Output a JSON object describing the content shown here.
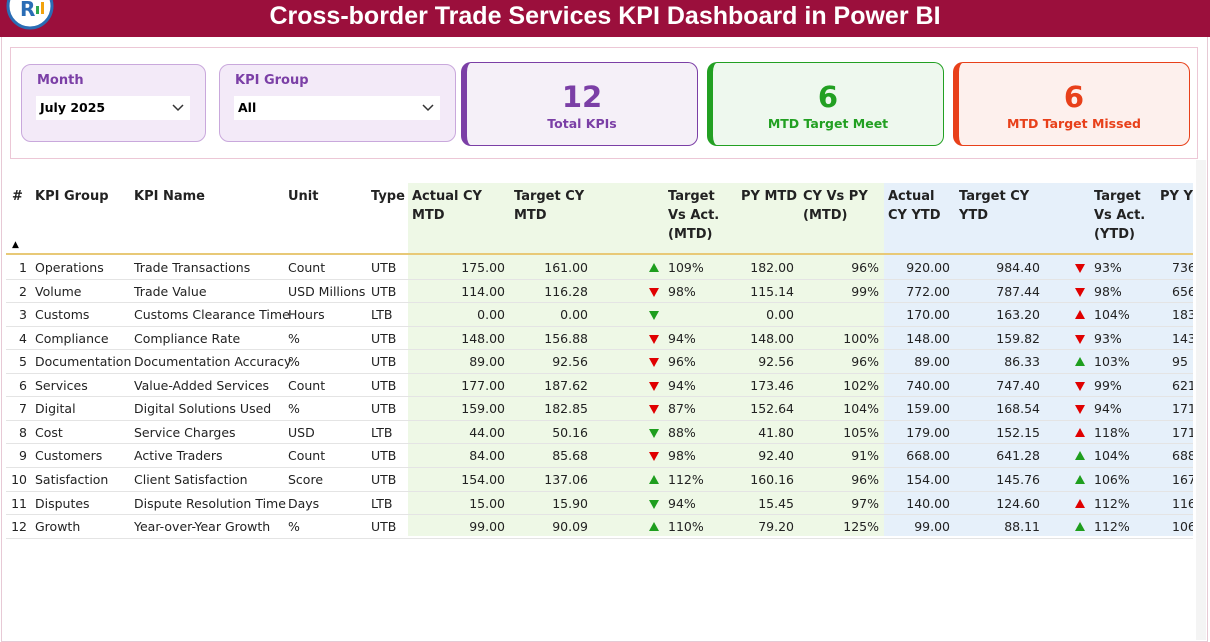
{
  "header": {
    "title": "Cross-border Trade Services KPI Dashboard in Power BI"
  },
  "slicers": [
    {
      "label": "Month",
      "value": "July 2025"
    },
    {
      "label": "KPI Group",
      "value": "All"
    }
  ],
  "cards": [
    {
      "value": "12",
      "label": "Total KPIs",
      "color": "#7b3fa6"
    },
    {
      "value": "6",
      "label": "MTD Target Meet",
      "color": "#22a022"
    },
    {
      "value": "6",
      "label": "MTD Target Missed",
      "color": "#e8401a"
    }
  ],
  "table": {
    "columns": [
      "#",
      "KPI Group",
      "KPI Name",
      "Unit",
      "Type",
      "Actual CY MTD",
      "Target CY MTD",
      "Target Vs Act. (MTD)",
      "PY MTD",
      "CY Vs PY (MTD)",
      "Actual CY YTD",
      "Target CY YTD",
      "Target Vs Act. (YTD)",
      "PY YTD"
    ],
    "rows": [
      [
        "1",
        "Operations",
        "Trade Transactions",
        "Count",
        "UTB",
        "175.00",
        "161.00",
        "109%",
        "182.00",
        "96%",
        "920.00",
        "984.40",
        "93%",
        "736"
      ],
      [
        "2",
        "Volume",
        "Trade Value",
        "USD Millions",
        "UTB",
        "114.00",
        "116.28",
        "98%",
        "115.14",
        "99%",
        "772.00",
        "787.44",
        "98%",
        "656"
      ],
      [
        "3",
        "Customs",
        "Customs Clearance Time",
        "Hours",
        "LTB",
        "0.00",
        "0.00",
        null,
        "0.00",
        null,
        "170.00",
        "163.20",
        "104%",
        "183"
      ],
      [
        "4",
        "Compliance",
        "Compliance Rate",
        "%",
        "UTB",
        "148.00",
        "156.88",
        "94%",
        "148.00",
        "100%",
        "148.00",
        "159.82",
        "93%",
        "143"
      ],
      [
        "5",
        "Documentation",
        "Documentation Accuracy",
        "%",
        "UTB",
        "89.00",
        "92.56",
        "96%",
        "92.56",
        "96%",
        "89.00",
        "86.33",
        "103%",
        "95"
      ],
      [
        "6",
        "Services",
        "Value-Added Services",
        "Count",
        "UTB",
        "177.00",
        "187.62",
        "94%",
        "173.46",
        "102%",
        "740.00",
        "747.40",
        "99%",
        "621"
      ],
      [
        "7",
        "Digital",
        "Digital Solutions Used",
        "%",
        "UTB",
        "159.00",
        "182.85",
        "87%",
        "152.64",
        "104%",
        "159.00",
        "168.54",
        "94%",
        "171"
      ],
      [
        "8",
        "Cost",
        "Service Charges",
        "USD",
        "LTB",
        "44.00",
        "50.16",
        "88%",
        "41.80",
        "105%",
        "179.00",
        "152.15",
        "118%",
        "171"
      ],
      [
        "9",
        "Customers",
        "Active Traders",
        "Count",
        "UTB",
        "84.00",
        "85.68",
        "98%",
        "92.40",
        "91%",
        "668.00",
        "641.28",
        "104%",
        "688"
      ],
      [
        "10",
        "Satisfaction",
        "Client Satisfaction",
        "Score",
        "UTB",
        "154.00",
        "137.06",
        "112%",
        "160.16",
        "96%",
        "154.00",
        "145.76",
        "106%",
        "167"
      ],
      [
        "11",
        "Disputes",
        "Dispute Resolution Time",
        "Days",
        "LTB",
        "15.00",
        "15.90",
        "94%",
        "15.45",
        "97%",
        "140.00",
        "124.60",
        "112%",
        "116"
      ],
      [
        "12",
        "Growth",
        "Year-over-Year Growth",
        "%",
        "UTB",
        "99.00",
        "90.09",
        "110%",
        "79.20",
        "125%",
        "99.00",
        "88.11",
        "112%",
        "106"
      ]
    ],
    "mtd_arrows": [
      "up",
      "down",
      "down",
      "down",
      "down",
      "down",
      "down",
      "down",
      "down",
      "up",
      "down",
      "up"
    ],
    "mtd_arrow_colors": [
      "#1e9e1e",
      "#e00000",
      "#1e9e1e",
      "#e00000",
      "#e00000",
      "#e00000",
      "#e00000",
      "#1e9e1e",
      "#e00000",
      "#1e9e1e",
      "#1e9e1e",
      "#1e9e1e"
    ],
    "ytd_arrows": [
      "down",
      "down",
      "up",
      "down",
      "up",
      "down",
      "down",
      "up",
      "up",
      "up",
      "up",
      "up"
    ],
    "ytd_arrow_colors": [
      "#e00000",
      "#e00000",
      "#e00000",
      "#e00000",
      "#1e9e1e",
      "#e00000",
      "#e00000",
      "#e00000",
      "#1e9e1e",
      "#1e9e1e",
      "#e00000",
      "#1e9e1e"
    ]
  }
}
